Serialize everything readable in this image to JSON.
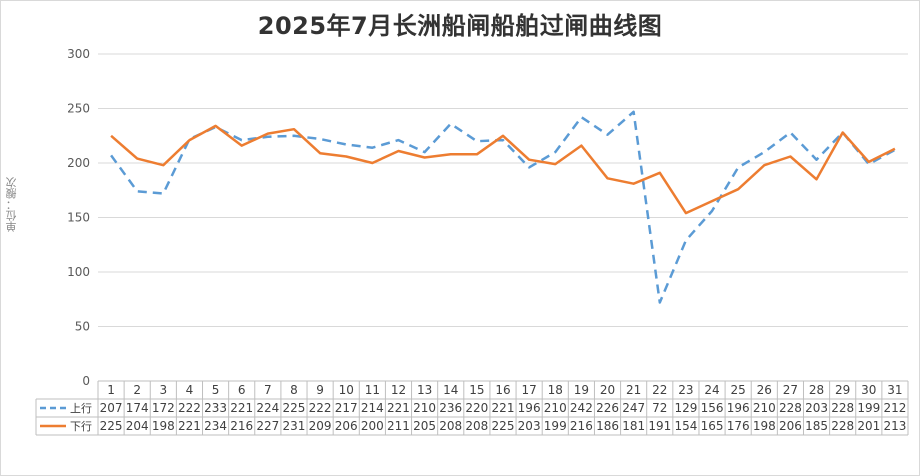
{
  "chart_data": {
    "type": "line",
    "title": "2025年7月长洲船闸船舶过闸曲线图",
    "ylabel": "单位：艘次",
    "ylim": [
      0,
      300
    ],
    "yticks": [
      0,
      50,
      100,
      150,
      200,
      250,
      300
    ],
    "categories": [
      "1",
      "2",
      "3",
      "4",
      "5",
      "6",
      "7",
      "8",
      "9",
      "10",
      "11",
      "12",
      "13",
      "14",
      "15",
      "16",
      "17",
      "18",
      "19",
      "20",
      "21",
      "22",
      "23",
      "24",
      "25",
      "26",
      "27",
      "28",
      "29",
      "30",
      "31"
    ],
    "series": [
      {
        "name": "上行",
        "style": "dashed",
        "color": "#5b9bd5",
        "values": [
          207,
          174,
          172,
          222,
          233,
          221,
          224,
          225,
          222,
          217,
          214,
          221,
          210,
          236,
          220,
          221,
          196,
          210,
          242,
          226,
          247,
          72,
          129,
          156,
          196,
          210,
          228,
          203,
          228,
          199,
          212
        ]
      },
      {
        "name": "下行",
        "style": "solid",
        "color": "#ed7d31",
        "values": [
          225,
          204,
          198,
          221,
          234,
          216,
          227,
          231,
          209,
          206,
          200,
          211,
          205,
          208,
          208,
          225,
          203,
          199,
          216,
          186,
          181,
          191,
          154,
          165,
          176,
          198,
          206,
          185,
          228,
          201,
          213
        ]
      }
    ],
    "grid": true,
    "legend": "data-table"
  }
}
